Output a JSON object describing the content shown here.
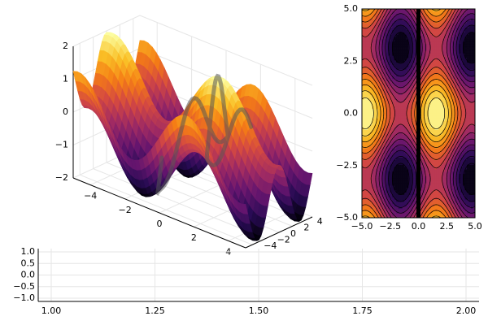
{
  "chart_data": [
    {
      "type": "surface",
      "function": "z = sin(x) + cos(y)",
      "x_range": [
        -5,
        5
      ],
      "y_range": [
        -5,
        5
      ],
      "zlim": [
        -2,
        2
      ],
      "x_ticks": [
        "−4",
        "−2",
        "0",
        "2",
        "4"
      ],
      "y_ticks": [
        "−4",
        "−2",
        "0",
        "2",
        "4"
      ],
      "z_ticks": [
        "2",
        "1",
        "0",
        "−1",
        "−2"
      ],
      "colormap": "inferno",
      "grid": true,
      "overlay_line": {
        "description": "sinusoidal path drawn on the surface",
        "color": "#555555"
      }
    },
    {
      "type": "contour",
      "function": "z = sin(x) + cos(y)",
      "x_range": [
        -5,
        5
      ],
      "y_range": [
        -5,
        5
      ],
      "x_ticks": [
        "−5.0",
        "−2.5",
        "0.0",
        "2.5",
        "5.0"
      ],
      "y_ticks": [
        "5.0",
        "2.5",
        "0.0",
        "−2.5",
        "−5.0"
      ],
      "colormap": "inferno",
      "filled": true,
      "vertical_line_x": 0
    },
    {
      "type": "line",
      "xlim": [
        1,
        2
      ],
      "ylim": [
        -1,
        1
      ],
      "x_ticks": [
        "1.00",
        "1.25",
        "1.50",
        "1.75",
        "2.00"
      ],
      "y_ticks": [
        "1.0",
        "0.5",
        "0.0",
        "−0.5",
        "−1.0"
      ],
      "series": [],
      "grid": true
    }
  ]
}
